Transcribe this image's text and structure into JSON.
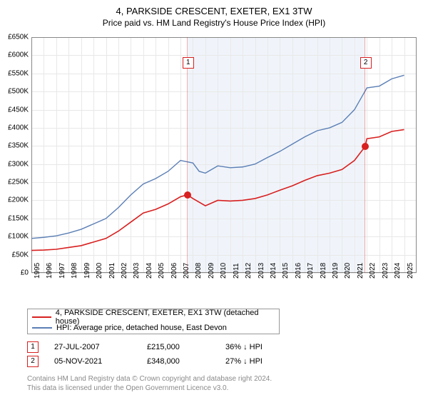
{
  "title_line1": "4, PARKSIDE CRESCENT, EXETER, EX1 3TW",
  "title_line2": "Price paid vs. HM Land Registry's House Price Index (HPI)",
  "chart": {
    "type": "line",
    "plot_background": "#ffffff",
    "highlight_background": "#f0f4fa",
    "grid_color": "#e8e8e8",
    "axis_color": "#888888",
    "x_range": [
      1995,
      2026
    ],
    "y_range": [
      0,
      650000
    ],
    "y_ticks": [
      0,
      50000,
      100000,
      150000,
      200000,
      250000,
      300000,
      350000,
      400000,
      450000,
      500000,
      550000,
      600000,
      650000
    ],
    "y_tick_labels": [
      "£0",
      "£50K",
      "£100K",
      "£150K",
      "£200K",
      "£250K",
      "£300K",
      "£350K",
      "£400K",
      "£450K",
      "£500K",
      "£550K",
      "£600K",
      "£650K"
    ],
    "x_ticks": [
      1995,
      1996,
      1997,
      1998,
      1999,
      2000,
      2001,
      2002,
      2003,
      2004,
      2005,
      2006,
      2007,
      2008,
      2009,
      2010,
      2011,
      2012,
      2013,
      2014,
      2015,
      2016,
      2017,
      2018,
      2019,
      2020,
      2021,
      2022,
      2023,
      2024,
      2025
    ],
    "highlight_start": 2007.56,
    "highlight_end": 2021.85,
    "series_red": {
      "color": "#d82020",
      "width": 1.6,
      "data": [
        [
          1995,
          62000
        ],
        [
          1996,
          63000
        ],
        [
          1997,
          65000
        ],
        [
          1998,
          70000
        ],
        [
          1999,
          75000
        ],
        [
          2000,
          85000
        ],
        [
          2001,
          95000
        ],
        [
          2002,
          115000
        ],
        [
          2003,
          140000
        ],
        [
          2004,
          165000
        ],
        [
          2005,
          175000
        ],
        [
          2006,
          190000
        ],
        [
          2007,
          210000
        ],
        [
          2007.56,
          215000
        ],
        [
          2008,
          205000
        ],
        [
          2009,
          185000
        ],
        [
          2010,
          200000
        ],
        [
          2011,
          198000
        ],
        [
          2012,
          200000
        ],
        [
          2013,
          205000
        ],
        [
          2014,
          215000
        ],
        [
          2015,
          228000
        ],
        [
          2016,
          240000
        ],
        [
          2017,
          255000
        ],
        [
          2018,
          268000
        ],
        [
          2019,
          275000
        ],
        [
          2020,
          285000
        ],
        [
          2021,
          310000
        ],
        [
          2021.85,
          348000
        ],
        [
          2022,
          370000
        ],
        [
          2023,
          375000
        ],
        [
          2024,
          390000
        ],
        [
          2025,
          395000
        ]
      ]
    },
    "series_blue": {
      "color": "#5b7fb5",
      "width": 1.4,
      "data": [
        [
          1995,
          95000
        ],
        [
          1996,
          98000
        ],
        [
          1997,
          102000
        ],
        [
          1998,
          110000
        ],
        [
          1999,
          120000
        ],
        [
          2000,
          135000
        ],
        [
          2001,
          150000
        ],
        [
          2002,
          180000
        ],
        [
          2003,
          215000
        ],
        [
          2004,
          245000
        ],
        [
          2005,
          260000
        ],
        [
          2006,
          280000
        ],
        [
          2007,
          310000
        ],
        [
          2008,
          303000
        ],
        [
          2008.5,
          280000
        ],
        [
          2009,
          275000
        ],
        [
          2010,
          295000
        ],
        [
          2011,
          290000
        ],
        [
          2012,
          292000
        ],
        [
          2013,
          300000
        ],
        [
          2014,
          318000
        ],
        [
          2015,
          335000
        ],
        [
          2016,
          355000
        ],
        [
          2017,
          375000
        ],
        [
          2018,
          392000
        ],
        [
          2019,
          400000
        ],
        [
          2020,
          415000
        ],
        [
          2021,
          450000
        ],
        [
          2022,
          510000
        ],
        [
          2023,
          515000
        ],
        [
          2024,
          535000
        ],
        [
          2025,
          545000
        ]
      ]
    },
    "sale_markers": [
      {
        "label": "1",
        "x": 2007.56,
        "y": 215000,
        "label_y": 595000
      },
      {
        "label": "2",
        "x": 2021.85,
        "y": 348000,
        "label_y": 595000
      }
    ]
  },
  "legend": {
    "red_label": "4, PARKSIDE CRESCENT, EXETER, EX1 3TW (detached house)",
    "blue_label": "HPI: Average price, detached house, East Devon",
    "red_color": "#d82020",
    "blue_color": "#5b7fb5"
  },
  "sales_table": [
    {
      "idx": "1",
      "date": "27-JUL-2007",
      "price": "£215,000",
      "vs_hpi": "36% ↓ HPI"
    },
    {
      "idx": "2",
      "date": "05-NOV-2021",
      "price": "£348,000",
      "vs_hpi": "27% ↓ HPI"
    }
  ],
  "copyright_line1": "Contains HM Land Registry data © Crown copyright and database right 2024.",
  "copyright_line2": "This data is licensed under the Open Government Licence v3.0."
}
